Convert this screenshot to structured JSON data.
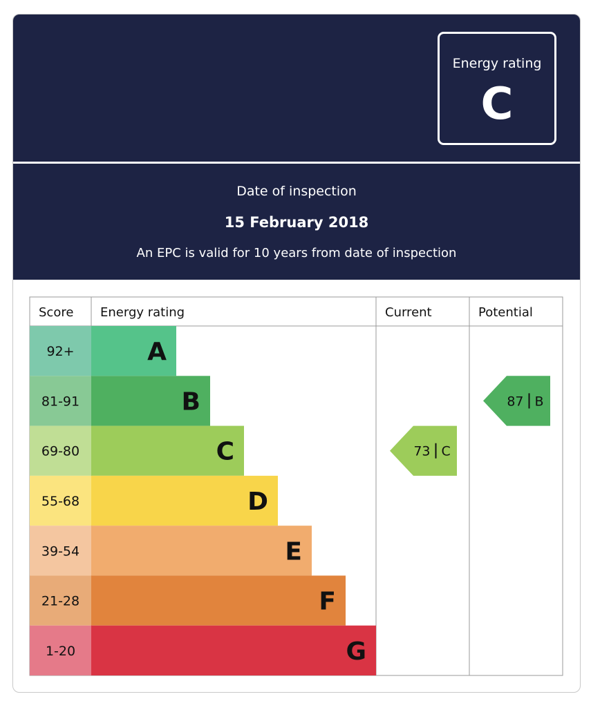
{
  "header": {
    "rating_box_label": "Energy rating",
    "rating_box_letter": "C"
  },
  "inspection": {
    "label": "Date of inspection",
    "date": "15 February 2018",
    "validity": "An EPC is valid for 10 years from date of inspection"
  },
  "chart_data": {
    "type": "bar",
    "columns": {
      "score": "Score",
      "energy_rating": "Energy rating",
      "current": "Current",
      "potential": "Potential"
    },
    "bands": [
      {
        "letter": "A",
        "range": "92+",
        "color": "#55c38a",
        "score_color": "#7ec9ac"
      },
      {
        "letter": "B",
        "range": "81-91",
        "color": "#4fb060",
        "score_color": "#88c995"
      },
      {
        "letter": "C",
        "range": "69-80",
        "color": "#9dcc5a",
        "score_color": "#c0de95"
      },
      {
        "letter": "D",
        "range": "55-68",
        "color": "#f8d54a",
        "score_color": "#fbe47f"
      },
      {
        "letter": "E",
        "range": "39-54",
        "color": "#f1ac6e",
        "score_color": "#f4c6a0"
      },
      {
        "letter": "F",
        "range": "21-28",
        "color": "#e1843d",
        "score_color": "#e8ab78"
      },
      {
        "letter": "G",
        "range": "1-20",
        "color": "#d93444",
        "score_color": "#e57a89"
      }
    ],
    "current": {
      "score": 73,
      "letter": "C",
      "color": "#9dcc5a"
    },
    "potential": {
      "score": 87,
      "letter": "B",
      "color": "#4fb060"
    }
  }
}
